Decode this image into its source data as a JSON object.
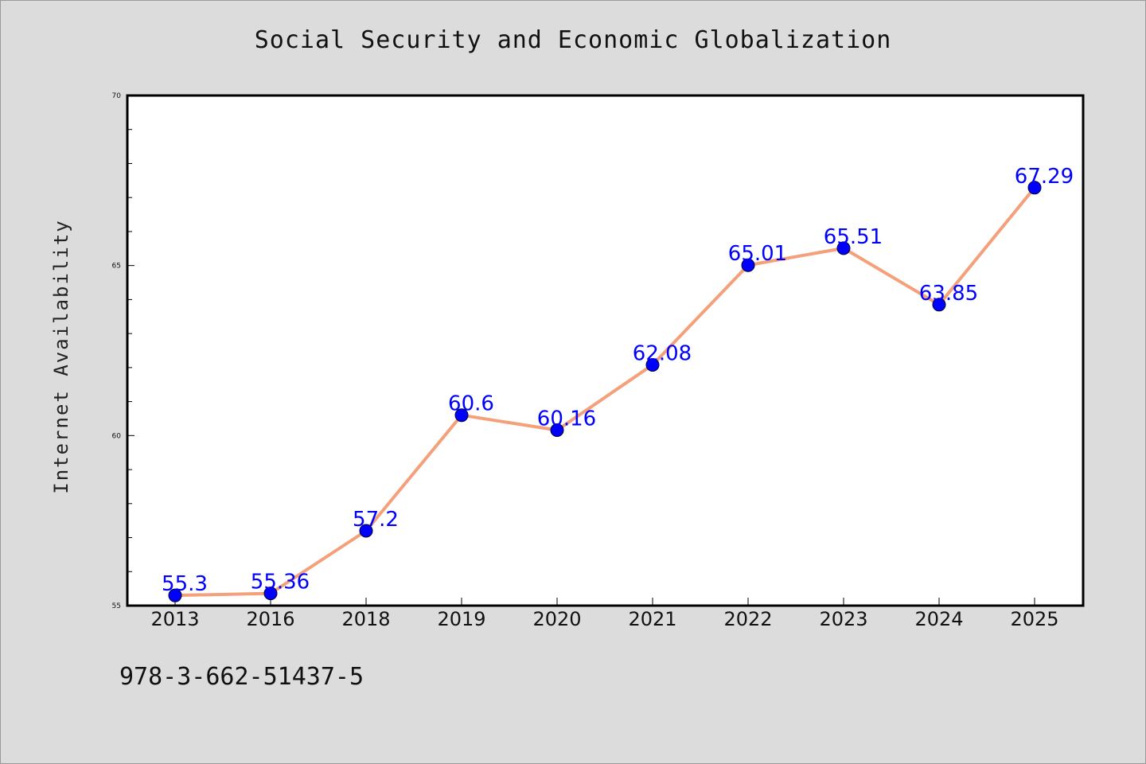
{
  "chart_data": {
    "type": "line",
    "title": "Social Security and Economic Globalization",
    "xlabel": "",
    "ylabel": "Internet Availability",
    "categories": [
      "2013",
      "2016",
      "2018",
      "2019",
      "2020",
      "2021",
      "2022",
      "2023",
      "2024",
      "2025"
    ],
    "series": [
      {
        "values": [
          55.3,
          55.36,
          57.2,
          60.6,
          60.16,
          62.08,
          65.01,
          65.51,
          63.85,
          67.29
        ],
        "labels": [
          "55.3",
          "55.36",
          "57.2",
          "60.6",
          "60.16",
          "62.08",
          "65.01",
          "65.51",
          "63.85",
          "67.29"
        ],
        "line_color": "#f4a07a",
        "marker_color": "#0000ff"
      }
    ],
    "ylim": [
      55,
      70
    ],
    "yticks": [
      "55",
      "60",
      "65",
      "70"
    ],
    "grid": false,
    "legend": "none"
  },
  "footer": {
    "isbn": "978-3-662-51437-5"
  },
  "colors": {
    "background": "#dcdcdc",
    "plot_background": "#ffffff",
    "label_color": "#0000ff"
  }
}
